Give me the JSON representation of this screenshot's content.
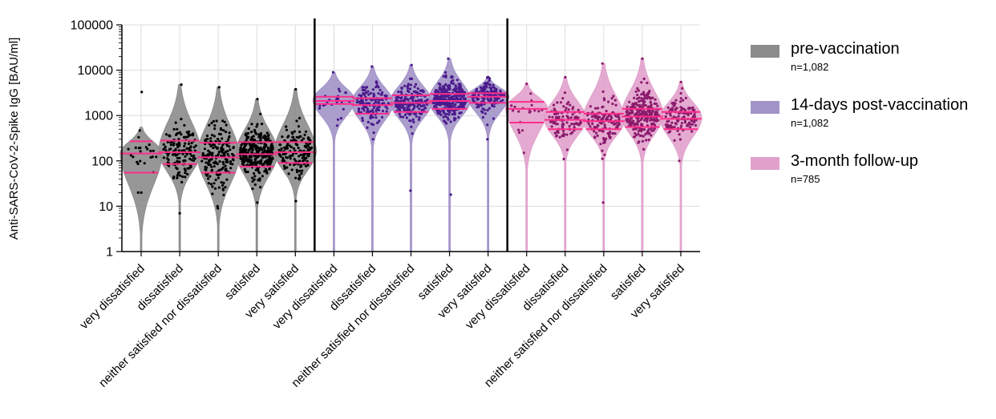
{
  "chart_data": {
    "type": "violin-scatter",
    "ylabel": "Anti-SARS-CoV-2-Spike IgG [BAU/ml]",
    "yscale": "log",
    "ylim": [
      1,
      100000
    ],
    "yticks": [
      {
        "value": 1,
        "label": "1"
      },
      {
        "value": 10,
        "label": "10"
      },
      {
        "value": 100,
        "label": "100"
      },
      {
        "value": 1000,
        "label": "1000"
      },
      {
        "value": 10000,
        "label": "10000"
      },
      {
        "value": 100000,
        "label": "100000"
      }
    ],
    "grid": true,
    "legend_position": "right",
    "categories": [
      "very dissatisfied",
      "dissatisfied",
      "neither satisfied nor dissatisfied",
      "satisfied",
      "very satisfied"
    ],
    "groups": [
      {
        "name": "pre-vaccination",
        "n_label": "n=1,082",
        "fill": "#8c8c8c",
        "dot": "#000000",
        "violins": [
          {
            "category": "very dissatisfied",
            "min": 1,
            "max": 550,
            "q1": 55,
            "median": 145,
            "q3": 270,
            "mode": 150,
            "dots": 25,
            "dot_min": 20,
            "dot_max": 3300
          },
          {
            "category": "dissatisfied",
            "min": 1,
            "max": 4800,
            "q1": 85,
            "median": 155,
            "q3": 280,
            "mode": 160,
            "dots": 150,
            "dot_min": 7,
            "dot_max": 4800
          },
          {
            "category": "neither satisfied nor dissatisfied",
            "min": 1,
            "max": 4200,
            "q1": 55,
            "median": 120,
            "q3": 250,
            "mode": 130,
            "dots": 190,
            "dot_min": 9,
            "dot_max": 4200
          },
          {
            "category": "satisfied",
            "min": 1,
            "max": 2300,
            "q1": 75,
            "median": 140,
            "q3": 260,
            "mode": 150,
            "dots": 340,
            "dot_min": 12,
            "dot_max": 2300
          },
          {
            "category": "very satisfied",
            "min": 1,
            "max": 3800,
            "q1": 90,
            "median": 155,
            "q3": 260,
            "mode": 160,
            "dots": 160,
            "dot_min": 13,
            "dot_max": 3800
          }
        ]
      },
      {
        "name": "14-days post-vaccination",
        "n_label": "n=1,082",
        "fill": "#a293c8",
        "dot": "#4b1a8c",
        "violins": [
          {
            "category": "very dissatisfied",
            "min": 1,
            "max": 9000,
            "q1": 1800,
            "median": 2100,
            "q3": 2600,
            "mode": 2200,
            "dots": 25,
            "dot_min": 600,
            "dot_max": 9000
          },
          {
            "category": "dissatisfied",
            "min": 1,
            "max": 12000,
            "q1": 1100,
            "median": 1700,
            "q3": 2400,
            "mode": 1900,
            "dots": 150,
            "dot_min": 300,
            "dot_max": 12000
          },
          {
            "category": "neither satisfied nor dissatisfied",
            "min": 1,
            "max": 13000,
            "q1": 1200,
            "median": 1900,
            "q3": 2800,
            "mode": 2000,
            "dots": 190,
            "dot_min": 22,
            "dot_max": 13000
          },
          {
            "category": "satisfied",
            "min": 1,
            "max": 18000,
            "q1": 1400,
            "median": 2100,
            "q3": 3000,
            "mode": 2200,
            "dots": 340,
            "dot_min": 18,
            "dot_max": 18000
          },
          {
            "category": "very satisfied",
            "min": 1,
            "max": 7000,
            "q1": 1900,
            "median": 2600,
            "q3": 3100,
            "mode": 2700,
            "dots": 160,
            "dot_min": 300,
            "dot_max": 7000
          }
        ]
      },
      {
        "name": "3-month follow-up",
        "n_label": "n=785",
        "fill": "#e1a1cc",
        "dot": "#8a1a6b",
        "violins": [
          {
            "category": "very dissatisfied",
            "min": 1,
            "max": 5000,
            "q1": 700,
            "median": 1400,
            "q3": 2000,
            "mode": 1500,
            "dots": 20,
            "dot_min": 150,
            "dot_max": 5000
          },
          {
            "category": "dissatisfied",
            "min": 1,
            "max": 7000,
            "q1": 500,
            "median": 800,
            "q3": 1200,
            "mode": 850,
            "dots": 110,
            "dot_min": 110,
            "dot_max": 7000
          },
          {
            "category": "neither satisfied nor dissatisfied",
            "min": 1,
            "max": 14000,
            "q1": 500,
            "median": 750,
            "q3": 1100,
            "mode": 800,
            "dots": 140,
            "dot_min": 12,
            "dot_max": 14000
          },
          {
            "category": "satisfied",
            "min": 1,
            "max": 18000,
            "q1": 560,
            "median": 950,
            "q3": 1400,
            "mode": 1000,
            "dots": 260,
            "dot_min": 180,
            "dot_max": 18000
          },
          {
            "category": "very satisfied",
            "min": 1,
            "max": 5500,
            "q1": 500,
            "median": 850,
            "q3": 1200,
            "mode": 900,
            "dots": 120,
            "dot_min": 100,
            "dot_max": 5500
          }
        ]
      }
    ],
    "median_line_color": "#ff2d8a"
  }
}
